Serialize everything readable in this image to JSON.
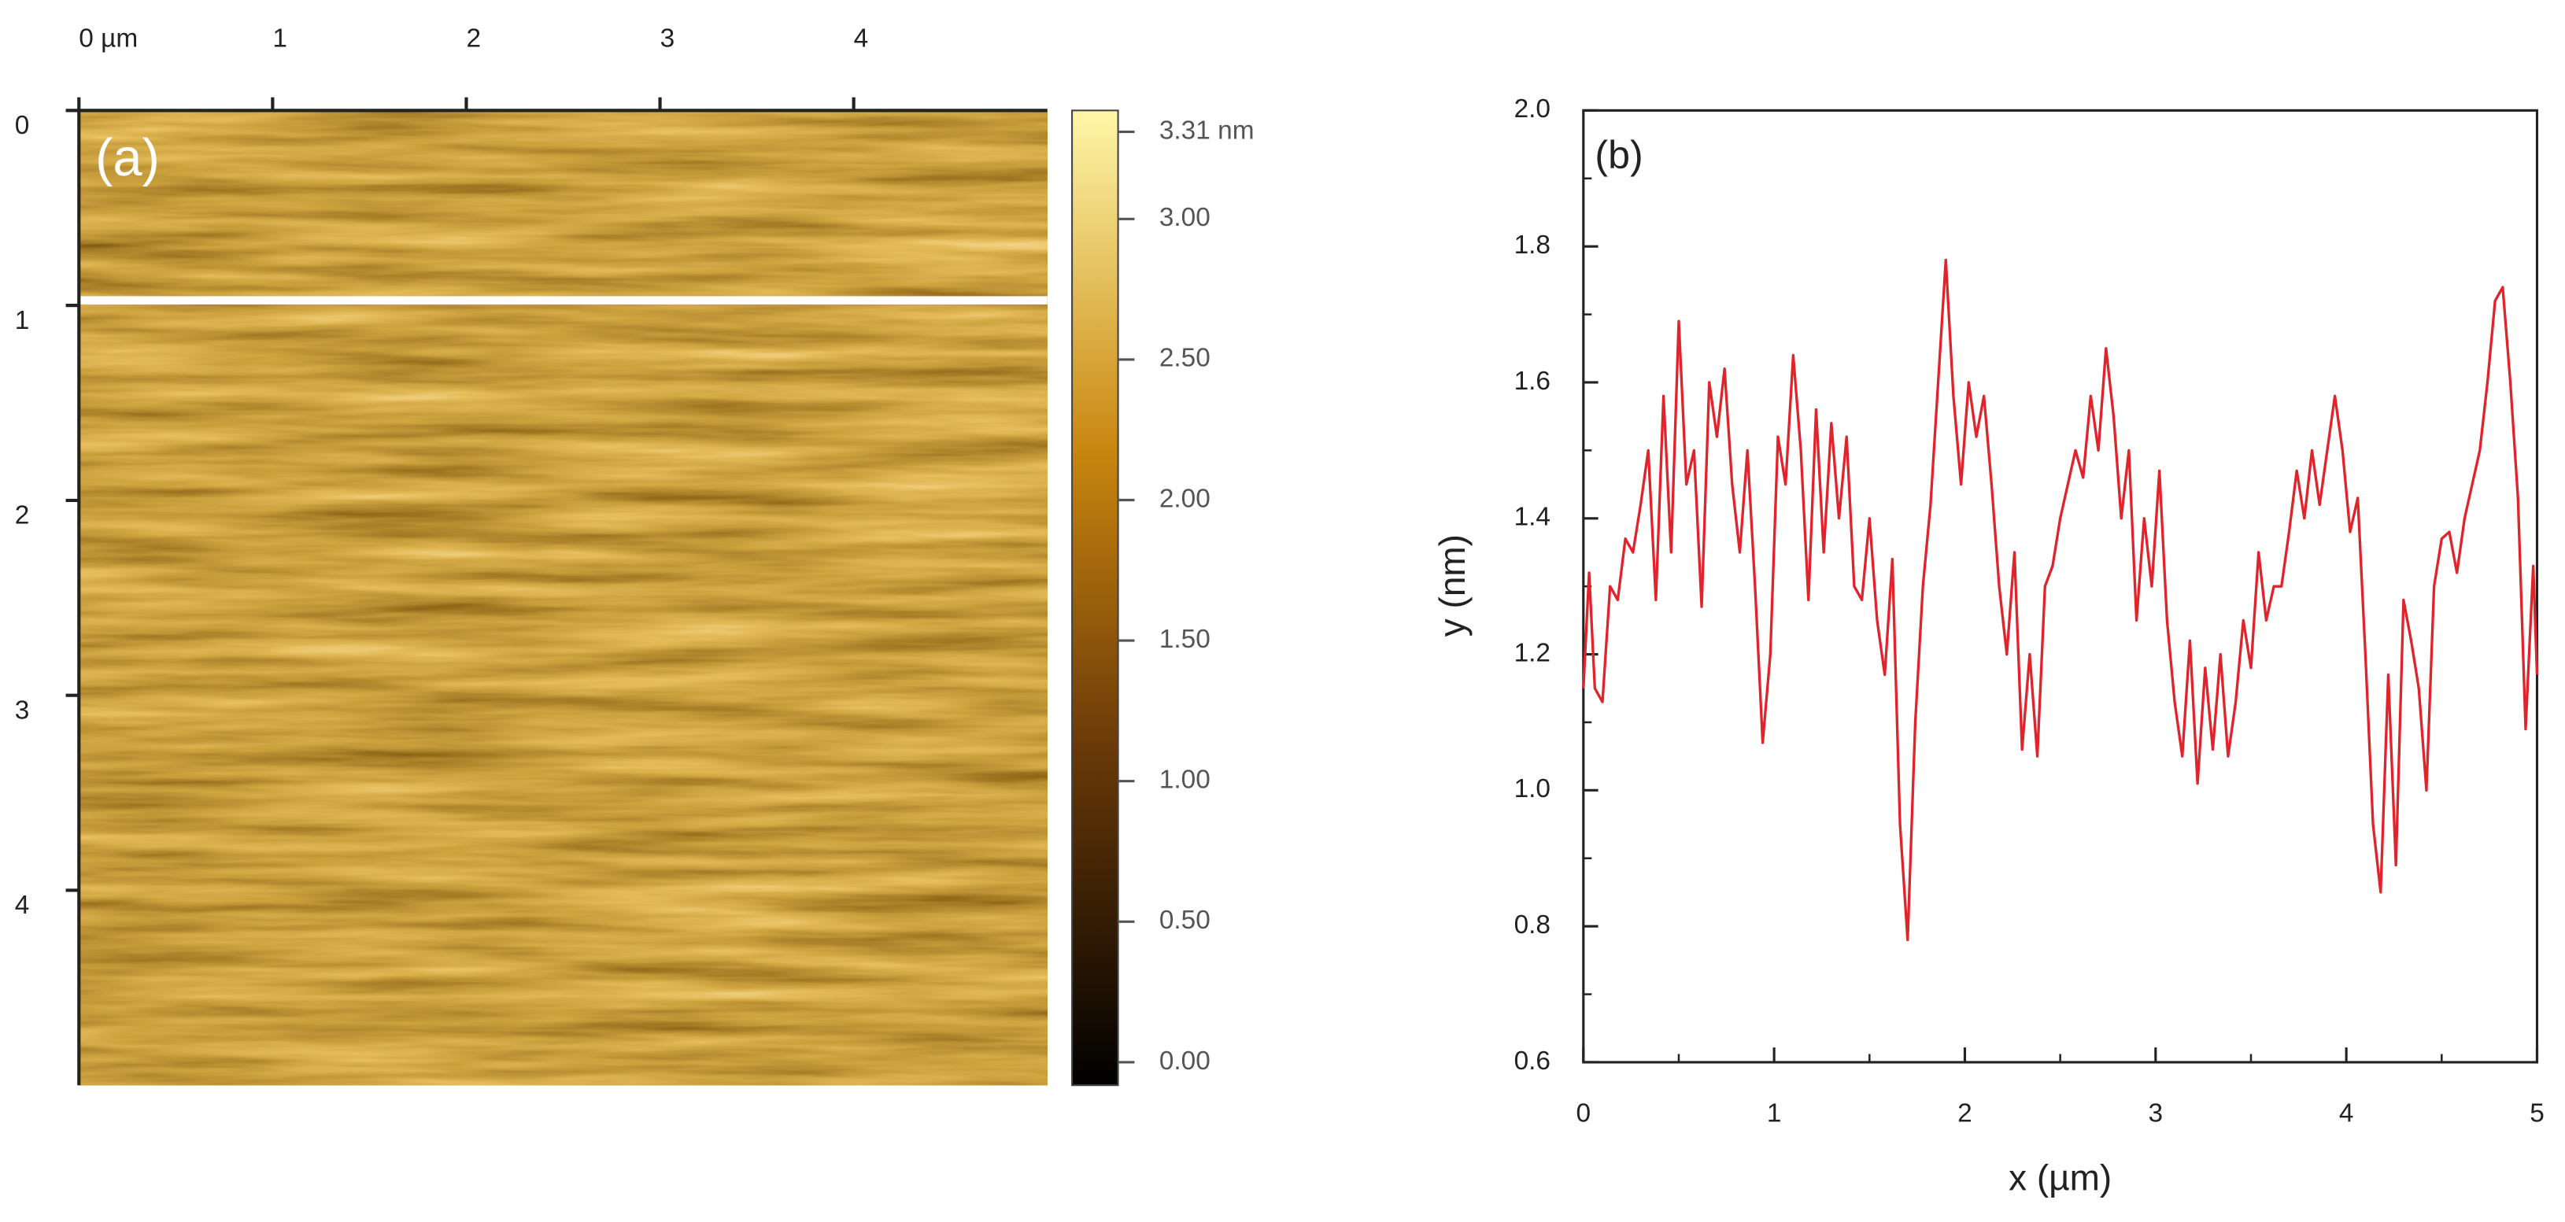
{
  "chart_data": [
    {
      "type": "image",
      "title": "(a)",
      "xlim": [
        0,
        5
      ],
      "ylim": [
        0,
        5
      ],
      "xticks": [
        {
          "value": 0,
          "label": "0 µm"
        },
        1,
        2,
        3,
        4
      ],
      "yticks": [
        0,
        1,
        2,
        3,
        4
      ],
      "clim": [
        0,
        3.31
      ],
      "cticks": [
        {
          "value": 3.31,
          "label": "3.31 nm"
        },
        {
          "value": 3,
          "label": "3.00"
        },
        {
          "value": 2.5,
          "label": "2.50"
        },
        {
          "value": 2,
          "label": "2.00"
        },
        {
          "value": 1.5,
          "label": "1.50"
        },
        {
          "value": 1,
          "label": "1.00"
        },
        {
          "value": 0.5,
          "label": "0.50"
        },
        {
          "value": 0,
          "label": "0.00"
        }
      ]
    },
    {
      "type": "line",
      "title": "(b)",
      "xlabel": "x (µm)",
      "ylabel": "y (nm)",
      "xlim": [
        0,
        5
      ],
      "ylim": [
        0.6,
        2.0
      ],
      "xticks": [
        0,
        1,
        2,
        3,
        4,
        5
      ],
      "yticks": [
        0.6,
        0.8,
        {
          "value": 1.0,
          "label": "1.0"
        },
        1.2,
        1.4,
        1.6,
        1.8,
        {
          "value": 2.0,
          "label": "2.0"
        }
      ],
      "x": [
        0.0,
        0.03,
        0.06,
        0.1,
        0.14,
        0.18,
        0.22,
        0.26,
        0.3,
        0.34,
        0.38,
        0.42,
        0.46,
        0.5,
        0.54,
        0.58,
        0.62,
        0.66,
        0.7,
        0.74,
        0.78,
        0.82,
        0.86,
        0.9,
        0.94,
        0.98,
        1.02,
        1.06,
        1.1,
        1.14,
        1.18,
        1.22,
        1.26,
        1.3,
        1.34,
        1.38,
        1.42,
        1.46,
        1.5,
        1.54,
        1.58,
        1.62,
        1.66,
        1.7,
        1.74,
        1.78,
        1.82,
        1.86,
        1.9,
        1.94,
        1.98,
        2.02,
        2.06,
        2.1,
        2.14,
        2.18,
        2.22,
        2.26,
        2.3,
        2.34,
        2.38,
        2.42,
        2.46,
        2.5,
        2.54,
        2.58,
        2.62,
        2.66,
        2.7,
        2.74,
        2.78,
        2.82,
        2.86,
        2.9,
        2.94,
        2.98,
        3.02,
        3.06,
        3.1,
        3.14,
        3.18,
        3.22,
        3.26,
        3.3,
        3.34,
        3.38,
        3.42,
        3.46,
        3.5,
        3.54,
        3.58,
        3.62,
        3.66,
        3.7,
        3.74,
        3.78,
        3.82,
        3.86,
        3.9,
        3.94,
        3.98,
        4.02,
        4.06,
        4.1,
        4.14,
        4.18,
        4.22,
        4.26,
        4.3,
        4.34,
        4.38,
        4.42,
        4.46,
        4.5,
        4.54,
        4.58,
        4.62,
        4.66,
        4.7,
        4.74,
        4.78,
        4.82,
        4.86,
        4.9,
        4.94,
        4.98,
        5.0
      ],
      "series": [
        {
          "color": "#e0242c",
          "values": [
            1.15,
            1.32,
            1.15,
            1.13,
            1.3,
            1.28,
            1.37,
            1.35,
            1.42,
            1.5,
            1.28,
            1.58,
            1.35,
            1.69,
            1.45,
            1.5,
            1.27,
            1.6,
            1.52,
            1.62,
            1.45,
            1.35,
            1.5,
            1.3,
            1.07,
            1.2,
            1.52,
            1.45,
            1.64,
            1.5,
            1.28,
            1.56,
            1.35,
            1.54,
            1.4,
            1.52,
            1.3,
            1.28,
            1.4,
            1.25,
            1.17,
            1.34,
            0.95,
            0.78,
            1.1,
            1.3,
            1.42,
            1.6,
            1.78,
            1.58,
            1.45,
            1.6,
            1.52,
            1.58,
            1.45,
            1.3,
            1.2,
            1.35,
            1.06,
            1.2,
            1.05,
            1.3,
            1.33,
            1.4,
            1.45,
            1.5,
            1.46,
            1.58,
            1.5,
            1.65,
            1.55,
            1.4,
            1.5,
            1.25,
            1.4,
            1.3,
            1.47,
            1.25,
            1.13,
            1.05,
            1.22,
            1.01,
            1.18,
            1.06,
            1.2,
            1.05,
            1.13,
            1.25,
            1.18,
            1.35,
            1.25,
            1.3,
            1.3,
            1.38,
            1.47,
            1.4,
            1.5,
            1.42,
            1.5,
            1.58,
            1.5,
            1.38,
            1.43,
            1.2,
            0.95,
            0.85,
            1.17,
            0.89,
            1.28,
            1.22,
            1.15,
            1.0,
            1.3,
            1.37,
            1.38,
            1.32,
            1.4,
            1.45,
            1.5,
            1.6,
            1.72,
            1.74,
            1.6,
            1.43,
            1.09,
            1.33,
            1.17
          ]
        }
      ]
    }
  ]
}
